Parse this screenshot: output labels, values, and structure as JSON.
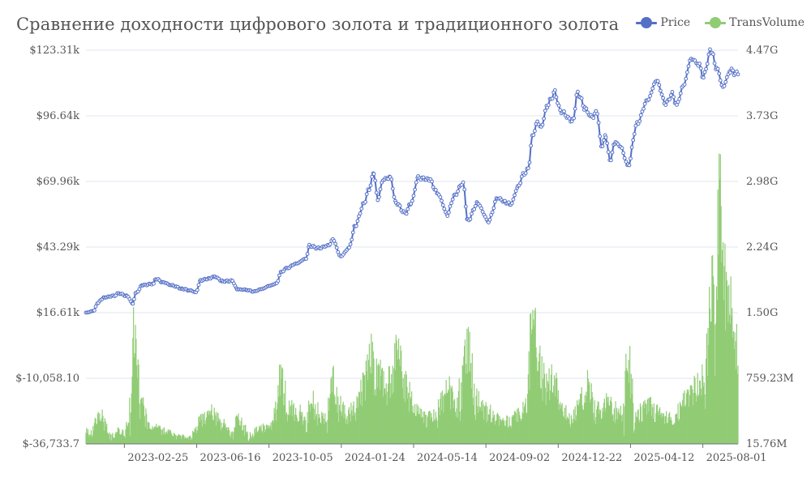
{
  "chart_data": {
    "type": "line+bar",
    "title": "Сравнение доходности цифрового золота и традиционного золота",
    "legend": [
      "Price",
      "TransVolume"
    ],
    "legend_position": "top-right",
    "x_ticks": [
      "2023-02-25",
      "2023-06-16",
      "2023-10-05",
      "2024-01-24",
      "2024-05-14",
      "2024-09-02",
      "2024-12-22",
      "2025-04-12",
      "2025-08-01"
    ],
    "x_range": [
      "2022-12-28",
      "2025-09-24"
    ],
    "y_left_ticks": [
      "$-36,733.7",
      "$-10,058.10",
      "$16.61k",
      "$43.29k",
      "$69.96k",
      "$96.64k",
      "$123.31k"
    ],
    "y_left_range": [
      -36733.7,
      123310
    ],
    "y_right_ticks": [
      "15.76M",
      "759.23M",
      "1.50G",
      "2.24G",
      "2.98G",
      "3.73G",
      "4.47G"
    ],
    "y_right_range": [
      15760000,
      4470000000
    ],
    "grid": true,
    "series": [
      {
        "name": "Price",
        "type": "line",
        "axis": "left",
        "color": "#5470c6",
        "points": [
          [
            "2022-12-28",
            16600
          ],
          [
            "2023-01-10",
            17400
          ],
          [
            "2023-01-14",
            20500
          ],
          [
            "2023-01-25",
            22800
          ],
          [
            "2023-02-10",
            23500
          ],
          [
            "2023-02-16",
            24500
          ],
          [
            "2023-03-01",
            23400
          ],
          [
            "2023-03-10",
            20300
          ],
          [
            "2023-03-14",
            24400
          ],
          [
            "2023-03-25",
            27800
          ],
          [
            "2023-04-11",
            28400
          ],
          [
            "2023-04-14",
            30400
          ],
          [
            "2023-04-25",
            29000
          ],
          [
            "2023-05-10",
            27600
          ],
          [
            "2023-05-25",
            26300
          ],
          [
            "2023-06-05",
            25700
          ],
          [
            "2023-06-15",
            24900
          ],
          [
            "2023-06-22",
            29800
          ],
          [
            "2023-07-05",
            30500
          ],
          [
            "2023-07-14",
            31300
          ],
          [
            "2023-07-25",
            29400
          ],
          [
            "2023-08-10",
            29500
          ],
          [
            "2023-08-17",
            26100
          ],
          [
            "2023-09-01",
            25900
          ],
          [
            "2023-09-11",
            25200
          ],
          [
            "2023-09-25",
            26300
          ],
          [
            "2023-10-05",
            27500
          ],
          [
            "2023-10-17",
            28500
          ],
          [
            "2023-10-23",
            33000
          ],
          [
            "2023-11-01",
            34600
          ],
          [
            "2023-11-15",
            36500
          ],
          [
            "2023-12-01",
            38600
          ],
          [
            "2023-12-06",
            43800
          ],
          [
            "2023-12-20",
            42800
          ],
          [
            "2024-01-05",
            44000
          ],
          [
            "2024-01-11",
            46400
          ],
          [
            "2024-01-23",
            39500
          ],
          [
            "2024-02-05",
            42900
          ],
          [
            "2024-02-14",
            51800
          ],
          [
            "2024-02-28",
            61000
          ],
          [
            "2024-03-05",
            66000
          ],
          [
            "2024-03-14",
            73100
          ],
          [
            "2024-03-20",
            62500
          ],
          [
            "2024-03-28",
            70700
          ],
          [
            "2024-04-08",
            71600
          ],
          [
            "2024-04-17",
            61300
          ],
          [
            "2024-05-01",
            57000
          ],
          [
            "2024-05-10",
            61000
          ],
          [
            "2024-05-21",
            71400
          ],
          [
            "2024-06-07",
            70800
          ],
          [
            "2024-06-20",
            65000
          ],
          [
            "2024-07-05",
            56600
          ],
          [
            "2024-07-15",
            64000
          ],
          [
            "2024-07-29",
            69400
          ],
          [
            "2024-08-05",
            54000
          ],
          [
            "2024-08-20",
            61000
          ],
          [
            "2024-09-06",
            53900
          ],
          [
            "2024-09-20",
            63300
          ],
          [
            "2024-10-01",
            61700
          ],
          [
            "2024-10-10",
            60500
          ],
          [
            "2024-10-21",
            67400
          ],
          [
            "2024-10-29",
            72700
          ],
          [
            "2024-11-06",
            75000
          ],
          [
            "2024-11-12",
            88000
          ],
          [
            "2024-11-20",
            94000
          ],
          [
            "2024-11-26",
            91900
          ],
          [
            "2024-12-05",
            101000
          ],
          [
            "2024-12-17",
            106100
          ],
          [
            "2024-12-25",
            98700
          ],
          [
            "2025-01-13",
            94500
          ],
          [
            "2025-01-21",
            106000
          ],
          [
            "2025-02-01",
            100000
          ],
          [
            "2025-02-10",
            96000
          ],
          [
            "2025-02-20",
            98000
          ],
          [
            "2025-02-26",
            84000
          ],
          [
            "2025-03-05",
            88500
          ],
          [
            "2025-03-11",
            78500
          ],
          [
            "2025-03-20",
            86000
          ],
          [
            "2025-03-28",
            84000
          ],
          [
            "2025-04-08",
            76300
          ],
          [
            "2025-04-22",
            93400
          ],
          [
            "2025-05-08",
            103000
          ],
          [
            "2025-05-22",
            111000
          ],
          [
            "2025-06-05",
            101500
          ],
          [
            "2025-06-15",
            105500
          ],
          [
            "2025-06-22",
            101000
          ],
          [
            "2025-07-02",
            108800
          ],
          [
            "2025-07-14",
            119800
          ],
          [
            "2025-07-25",
            118000
          ],
          [
            "2025-08-02",
            112500
          ],
          [
            "2025-08-13",
            123300
          ],
          [
            "2025-08-22",
            116500
          ],
          [
            "2025-09-01",
            108300
          ],
          [
            "2025-09-12",
            115000
          ],
          [
            "2025-09-24",
            113500
          ]
        ]
      },
      {
        "name": "TransVolume",
        "type": "bar",
        "axis": "right",
        "color": "#91cc75",
        "points": [
          [
            "2022-12-28",
            160000000
          ],
          [
            "2023-01-05",
            120000000
          ],
          [
            "2023-01-12",
            280000000
          ],
          [
            "2023-01-20",
            350000000
          ],
          [
            "2023-01-28",
            200000000
          ],
          [
            "2023-02-05",
            100000000
          ],
          [
            "2023-02-15",
            180000000
          ],
          [
            "2023-02-25",
            150000000
          ],
          [
            "2023-03-05",
            300000000
          ],
          [
            "2023-03-12",
            1350000000
          ],
          [
            "2023-03-16",
            1050000000
          ],
          [
            "2023-03-22",
            550000000
          ],
          [
            "2023-04-01",
            250000000
          ],
          [
            "2023-04-15",
            200000000
          ],
          [
            "2023-05-01",
            150000000
          ],
          [
            "2023-05-20",
            100000000
          ],
          [
            "2023-06-10",
            90000000
          ],
          [
            "2023-06-20",
            300000000
          ],
          [
            "2023-07-10",
            380000000
          ],
          [
            "2023-07-25",
            250000000
          ],
          [
            "2023-08-10",
            150000000
          ],
          [
            "2023-08-17",
            300000000
          ],
          [
            "2023-09-05",
            120000000
          ],
          [
            "2023-09-22",
            190000000
          ],
          [
            "2023-10-10",
            230000000
          ],
          [
            "2023-10-22",
            780000000
          ],
          [
            "2023-11-05",
            420000000
          ],
          [
            "2023-11-20",
            380000000
          ],
          [
            "2023-12-01",
            300000000
          ],
          [
            "2023-12-08",
            550000000
          ],
          [
            "2023-12-20",
            350000000
          ],
          [
            "2024-01-02",
            300000000
          ],
          [
            "2024-01-11",
            800000000
          ],
          [
            "2024-01-22",
            450000000
          ],
          [
            "2024-02-05",
            350000000
          ],
          [
            "2024-02-15",
            450000000
          ],
          [
            "2024-03-01",
            700000000
          ],
          [
            "2024-03-06",
            1100000000
          ],
          [
            "2024-03-18",
            850000000
          ],
          [
            "2024-04-01",
            650000000
          ],
          [
            "2024-04-12",
            800000000
          ],
          [
            "2024-04-18",
            1100000000
          ],
          [
            "2024-05-01",
            700000000
          ],
          [
            "2024-05-15",
            400000000
          ],
          [
            "2024-06-01",
            300000000
          ],
          [
            "2024-06-20",
            380000000
          ],
          [
            "2024-07-05",
            650000000
          ],
          [
            "2024-07-20",
            450000000
          ],
          [
            "2024-08-05",
            1120000000
          ],
          [
            "2024-08-20",
            500000000
          ],
          [
            "2024-09-06",
            380000000
          ],
          [
            "2024-09-20",
            300000000
          ],
          [
            "2024-10-10",
            280000000
          ],
          [
            "2024-10-25",
            350000000
          ],
          [
            "2024-11-05",
            500000000
          ],
          [
            "2024-11-12",
            1600000000
          ],
          [
            "2024-11-20",
            1100000000
          ],
          [
            "2024-12-01",
            650000000
          ],
          [
            "2024-12-15",
            800000000
          ],
          [
            "2024-12-28",
            450000000
          ],
          [
            "2025-01-10",
            300000000
          ],
          [
            "2025-01-25",
            450000000
          ],
          [
            "2025-02-05",
            780000000
          ],
          [
            "2025-02-20",
            400000000
          ],
          [
            "2025-03-05",
            500000000
          ],
          [
            "2025-03-20",
            400000000
          ],
          [
            "2025-04-01",
            350000000
          ],
          [
            "2025-04-07",
            1050000000
          ],
          [
            "2025-04-20",
            350000000
          ],
          [
            "2025-05-10",
            450000000
          ],
          [
            "2025-05-25",
            350000000
          ],
          [
            "2025-06-10",
            300000000
          ],
          [
            "2025-06-25",
            400000000
          ],
          [
            "2025-07-10",
            550000000
          ],
          [
            "2025-07-25",
            700000000
          ],
          [
            "2025-08-05",
            800000000
          ],
          [
            "2025-08-14",
            1800000000
          ],
          [
            "2025-08-20",
            1600000000
          ],
          [
            "2025-08-28",
            2850000000
          ],
          [
            "2025-09-05",
            1650000000
          ],
          [
            "2025-09-12",
            1550000000
          ],
          [
            "2025-09-18",
            1400000000
          ],
          [
            "2025-09-24",
            900000000
          ]
        ]
      }
    ]
  }
}
